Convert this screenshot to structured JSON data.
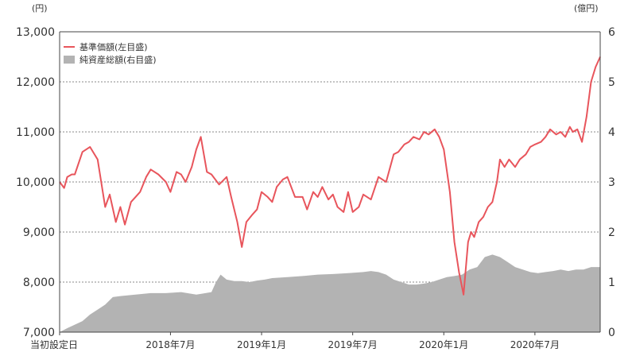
{
  "chart_data": {
    "type": "line+area",
    "left_axis": {
      "unit": "(円)",
      "ylim": [
        7000,
        13000
      ],
      "ticks": [
        "7,000",
        "8,000",
        "9,000",
        "10,000",
        "11,000",
        "12,000",
        "13,000"
      ]
    },
    "right_axis": {
      "unit": "(億円)",
      "ylim": [
        0,
        6
      ],
      "ticks": [
        "0",
        "1",
        "2",
        "3",
        "4",
        "5",
        "6"
      ]
    },
    "x_labels": [
      {
        "label": "当初設定日",
        "t": 0
      },
      {
        "label": "2018年7月",
        "t": 7.3
      },
      {
        "label": "2019年1月",
        "t": 13.3
      },
      {
        "label": "2019年7月",
        "t": 19.3
      },
      {
        "label": "2020年1月",
        "t": 25.3
      },
      {
        "label": "2020年7月",
        "t": 31.3
      }
    ],
    "xlim": [
      0,
      35.6
    ],
    "legend": [
      {
        "name": "基準価額(左目盛)",
        "color": "#e8555c"
      },
      {
        "name": "純資産総額(右目盛)",
        "color": "#b3b3b3"
      }
    ],
    "series": [
      {
        "name": "基準価額(左目盛)",
        "axis": "left",
        "type": "line",
        "color": "#e8555c",
        "x": [
          0,
          0.3,
          0.5,
          0.8,
          1,
          1.5,
          2,
          2.5,
          3,
          3.3,
          3.7,
          4,
          4.3,
          4.7,
          5,
          5.3,
          5.7,
          6,
          6.5,
          7,
          7.3,
          7.7,
          8,
          8.3,
          8.7,
          9,
          9.3,
          9.7,
          10,
          10.5,
          11,
          11.3,
          11.7,
          12,
          12.3,
          12.7,
          13,
          13.3,
          13.7,
          14,
          14.3,
          14.7,
          15,
          15.5,
          16,
          16.3,
          16.7,
          17,
          17.3,
          17.7,
          18,
          18.3,
          18.7,
          19,
          19.3,
          19.7,
          20,
          20.5,
          21,
          21.5,
          22,
          22.3,
          22.7,
          23,
          23.3,
          23.7,
          24,
          24.3,
          24.7,
          25,
          25.3,
          25.7,
          26,
          26.3,
          26.6,
          26.9,
          27.1,
          27.3,
          27.6,
          27.9,
          28.2,
          28.5,
          28.8,
          29,
          29.3,
          29.6,
          30,
          30.3,
          30.7,
          31,
          31.3,
          31.7,
          32,
          32.3,
          32.7,
          33,
          33.3,
          33.6,
          33.8,
          34.1,
          34.4,
          34.7,
          35,
          35.3,
          35.6
        ],
        "values": [
          10000,
          9880,
          10100,
          10150,
          10150,
          10600,
          10700,
          10450,
          9500,
          9750,
          9200,
          9500,
          9150,
          9600,
          9700,
          9800,
          10100,
          10250,
          10150,
          10000,
          9800,
          10200,
          10150,
          10000,
          10300,
          10650,
          10900,
          10200,
          10150,
          9950,
          10100,
          9700,
          9200,
          8700,
          9200,
          9350,
          9450,
          9800,
          9700,
          9600,
          9900,
          10050,
          10100,
          9700,
          9700,
          9450,
          9800,
          9700,
          9900,
          9650,
          9750,
          9500,
          9400,
          9800,
          9400,
          9500,
          9750,
          9650,
          10100,
          10000,
          10550,
          10600,
          10750,
          10800,
          10900,
          10850,
          11000,
          10950,
          11050,
          10900,
          10650,
          9800,
          8800,
          8200,
          7750,
          8800,
          9000,
          8900,
          9200,
          9300,
          9500,
          9600,
          10000,
          10450,
          10300,
          10450,
          10300,
          10450,
          10550,
          10700,
          10750,
          10800,
          10900,
          11050,
          10950,
          11000,
          10900,
          11100,
          11000,
          11050,
          10800,
          11300,
          12000,
          12300,
          12500
        ]
      },
      {
        "name": "純資産総額(右目盛)",
        "axis": "right",
        "type": "area",
        "color": "#b3b3b3",
        "x": [
          0,
          0.5,
          1,
          1.5,
          2,
          2.5,
          3,
          3.5,
          4,
          5,
          6,
          7,
          8,
          9,
          10,
          10.3,
          10.6,
          11,
          11.5,
          12,
          12.5,
          13,
          13.5,
          14,
          15,
          16,
          17,
          18,
          19,
          20,
          20.5,
          21,
          21.5,
          22,
          22.5,
          23,
          23.5,
          24,
          24.5,
          25,
          25.5,
          26,
          26.5,
          27,
          27.5,
          28,
          28.5,
          29,
          29.5,
          30,
          30.5,
          31,
          31.5,
          32,
          32.5,
          33,
          33.5,
          34,
          34.5,
          35,
          35.6
        ],
        "values": [
          0,
          0.08,
          0.15,
          0.22,
          0.35,
          0.45,
          0.55,
          0.7,
          0.72,
          0.75,
          0.78,
          0.78,
          0.8,
          0.75,
          0.8,
          1,
          1.15,
          1.05,
          1.02,
          1.02,
          1,
          1.03,
          1.05,
          1.08,
          1.1,
          1.12,
          1.15,
          1.16,
          1.18,
          1.2,
          1.22,
          1.2,
          1.15,
          1.05,
          1.0,
          0.95,
          0.95,
          0.97,
          1.0,
          1.05,
          1.1,
          1.12,
          1.15,
          1.25,
          1.3,
          1.5,
          1.55,
          1.5,
          1.4,
          1.3,
          1.25,
          1.2,
          1.18,
          1.2,
          1.22,
          1.25,
          1.22,
          1.25,
          1.25,
          1.3,
          1.3
        ]
      }
    ]
  }
}
